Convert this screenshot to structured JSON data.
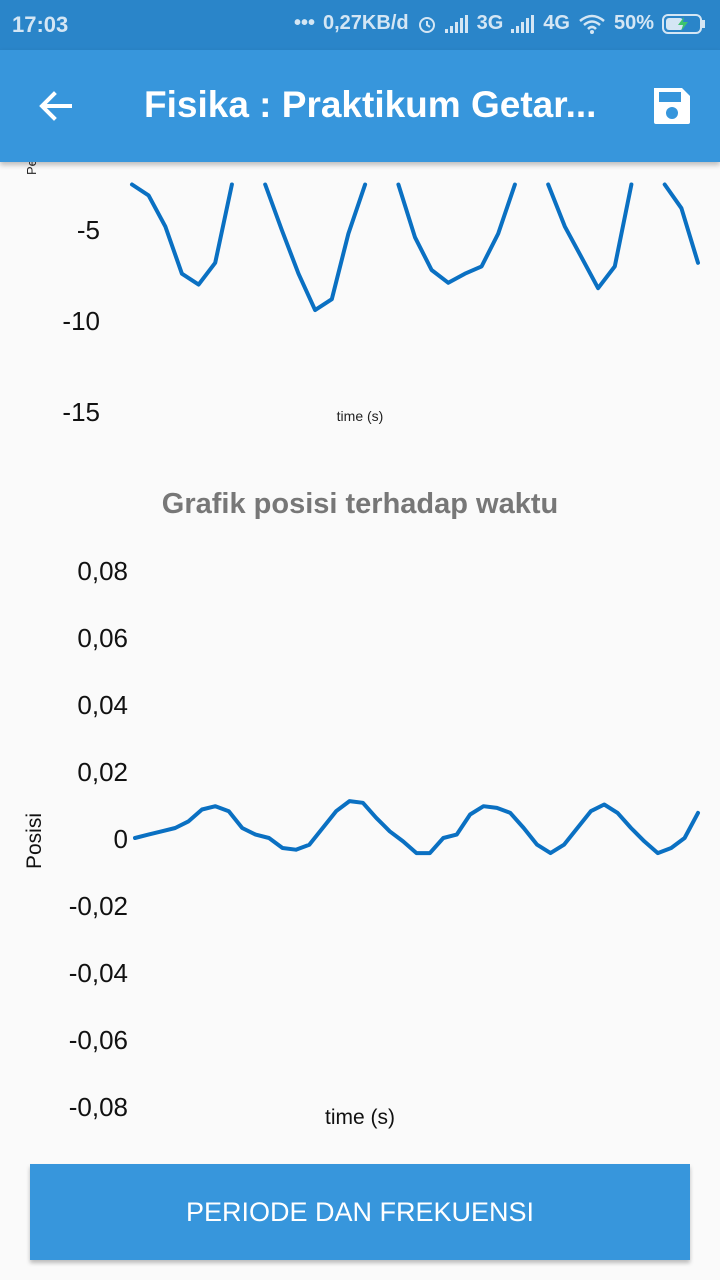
{
  "status_bar": {
    "time": "17:03",
    "dots": "•••",
    "speed": "0,27KB/d",
    "network1": "3G",
    "network2": "4G",
    "battery": "50%"
  },
  "app_bar": {
    "title": "Fisika : Praktikum Getar...",
    "back_icon": "arrow-left-icon",
    "save_icon": "floppy-disk-icon"
  },
  "chart1": {
    "y_ticks": [
      "-5",
      "-10",
      "-15"
    ],
    "xlabel": "time (s)",
    "ylabel_fragment": "Pe"
  },
  "chart_data": [
    {
      "type": "line",
      "title": "",
      "xlabel": "time (s)",
      "ylabel": "Pe",
      "ylim_visible": [
        -15,
        -2.5
      ],
      "y_ticks": [
        -5,
        -10,
        -15
      ],
      "series": [
        {
          "color": "#0a70c2",
          "values": [
            -2.5,
            -3.1,
            -4.8,
            -7.4,
            -8.0,
            -6.8,
            -2.5,
            null,
            -2.5,
            -5.0,
            -7.4,
            -9.4,
            -8.8,
            -5.2,
            -2.5,
            null,
            -2.5,
            -5.4,
            -7.2,
            -7.9,
            -7.4,
            -7.0,
            -5.2,
            -2.5,
            null,
            -2.5,
            -4.8,
            -6.5,
            -8.2,
            -7.0,
            -2.5,
            null,
            -2.5,
            -3.8,
            -6.8
          ]
        }
      ]
    },
    {
      "type": "line",
      "title": "Grafik posisi terhadap waktu",
      "xlabel": "time (s)",
      "ylabel": "Posisi",
      "ylim": [
        -0.08,
        0.08
      ],
      "y_ticks": [
        "0,08",
        "0,06",
        "0,04",
        "0,02",
        "0",
        "-0,02",
        "-0,04",
        "-0,06",
        "-0,08"
      ],
      "series": [
        {
          "color": "#0a70c2",
          "values": [
            0.0,
            0.001,
            0.002,
            0.003,
            0.005,
            0.0085,
            0.0095,
            0.008,
            0.003,
            0.001,
            0.0,
            -0.003,
            -0.0035,
            -0.002,
            0.003,
            0.008,
            0.011,
            0.0105,
            0.006,
            0.002,
            -0.001,
            -0.0045,
            -0.0045,
            0.0,
            0.001,
            0.007,
            0.0095,
            0.009,
            0.0075,
            0.003,
            -0.002,
            -0.0045,
            -0.002,
            0.003,
            0.008,
            0.01,
            0.0075,
            0.003,
            -0.001,
            -0.0045,
            -0.003,
            0.0,
            0.0075
          ]
        }
      ]
    }
  ],
  "chart2_labels": {
    "title": "Grafik posisi terhadap waktu",
    "xlabel": "time (s)",
    "ylabel": "Posisi"
  },
  "action_button": {
    "label": "PERIODE DAN FREKUENSI"
  }
}
